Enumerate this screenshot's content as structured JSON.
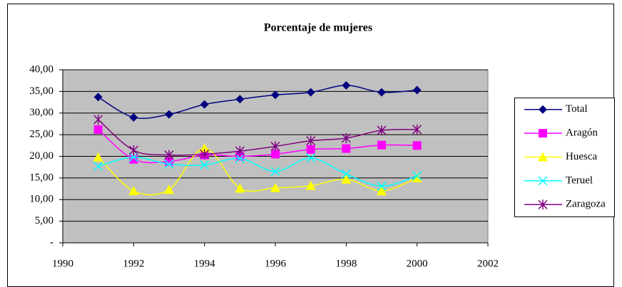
{
  "chart_data": {
    "type": "line",
    "title": "Porcentaje de mujeres",
    "x": [
      1991,
      1992,
      1993,
      1994,
      1995,
      1996,
      1997,
      1998,
      1999,
      2000
    ],
    "series": [
      {
        "name": "Total",
        "color": "#000080",
        "marker": "diamond",
        "values": [
          33.7,
          29.0,
          29.7,
          32.0,
          33.2,
          34.2,
          34.8,
          36.4,
          34.8,
          35.3
        ]
      },
      {
        "name": "Aragón",
        "color": "#ff00ff",
        "marker": "square",
        "values": [
          26.2,
          19.3,
          18.8,
          20.3,
          20.0,
          20.5,
          21.6,
          21.8,
          22.6,
          22.5
        ]
      },
      {
        "name": "Huesca",
        "color": "#ffff00",
        "marker": "triangle",
        "values": [
          19.8,
          12.0,
          12.3,
          21.9,
          12.6,
          12.7,
          13.2,
          14.7,
          12.0,
          15.0
        ]
      },
      {
        "name": "Teruel",
        "color": "#00ffff",
        "marker": "x",
        "values": [
          17.7,
          19.8,
          18.2,
          18.0,
          19.5,
          16.5,
          19.6,
          15.9,
          13.1,
          15.5
        ]
      },
      {
        "name": "Zaragoza",
        "color": "#800080",
        "marker": "star",
        "values": [
          28.5,
          21.4,
          20.3,
          20.5,
          21.2,
          22.3,
          23.6,
          24.2,
          26.0,
          26.2
        ]
      }
    ],
    "xlim": [
      1990,
      2002
    ],
    "xticks": [
      1990,
      1992,
      1994,
      1996,
      1998,
      2000,
      2002
    ],
    "ylim": [
      0,
      40
    ],
    "yticks": [
      {
        "value": 0,
        "label": "-"
      },
      {
        "value": 5,
        "label": "5,00"
      },
      {
        "value": 10,
        "label": "10,00"
      },
      {
        "value": 15,
        "label": "15,00"
      },
      {
        "value": 20,
        "label": "20,00"
      },
      {
        "value": 25,
        "label": "25,00"
      },
      {
        "value": 30,
        "label": "30,00"
      },
      {
        "value": 35,
        "label": "35,00"
      },
      {
        "value": 40,
        "label": "40,00"
      }
    ],
    "grid": true,
    "plot_background": "#c0c0c0",
    "legend": "right"
  }
}
